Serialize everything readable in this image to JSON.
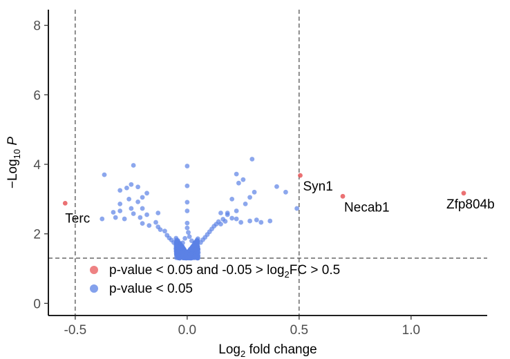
{
  "chart_data": {
    "type": "scatter",
    "xlabel": {
      "base": "Log",
      "sub": "2",
      "rest": " fold change"
    },
    "ylabel": {
      "prefix": "−Log",
      "sub": "10",
      "rest": "P"
    },
    "xlim": [
      -0.62,
      1.34
    ],
    "ylim": [
      -0.35,
      8.45
    ],
    "x_ticks": [
      -0.5,
      0.0,
      0.5,
      1.0
    ],
    "x_tick_labels": [
      "-0.5",
      "0.0",
      "0.5",
      "1.0"
    ],
    "y_ticks": [
      0,
      2,
      4,
      6,
      8
    ],
    "y_tick_labels": [
      "0",
      "2",
      "4",
      "6",
      "8"
    ],
    "vlines": [
      -0.5,
      0.5
    ],
    "hline": 1.3,
    "grid": false,
    "legend_position": "bottom-left inside",
    "legend": [
      {
        "color": "#e8585a",
        "parts": [
          {
            "t": "p-value < 0.05 and -0.05 > log"
          },
          {
            "t": "2",
            "sub": true
          },
          {
            "t": "FC > 0.5"
          }
        ]
      },
      {
        "color": "#5b82e6",
        "parts": [
          {
            "t": "p-value < 0.05"
          }
        ]
      }
    ],
    "colors": {
      "significant_fc": "#e8585a",
      "significant_p": "#5b82e6"
    },
    "series": [
      {
        "name": "p-value < 0.05 and -0.05 > log2FC > 0.5",
        "points": [
          {
            "x": -0.545,
            "y": 2.88,
            "label": "Terc"
          },
          {
            "x": 0.505,
            "y": 3.68,
            "label": "Syn1"
          },
          {
            "x": 0.695,
            "y": 3.08,
            "label": "Necab1"
          },
          {
            "x": 1.235,
            "y": 3.17,
            "label": "Zfp804b"
          }
        ]
      },
      {
        "name": "p-value < 0.05",
        "points": [
          {
            "x": -0.37,
            "y": 3.7
          },
          {
            "x": -0.24,
            "y": 3.97
          },
          {
            "x": -0.3,
            "y": 3.25
          },
          {
            "x": -0.27,
            "y": 3.32
          },
          {
            "x": -0.22,
            "y": 3.35
          },
          {
            "x": -0.25,
            "y": 3.42
          },
          {
            "x": -0.18,
            "y": 3.17
          },
          {
            "x": -0.2,
            "y": 3.05
          },
          {
            "x": -0.26,
            "y": 3.0
          },
          {
            "x": -0.22,
            "y": 2.92
          },
          {
            "x": -0.3,
            "y": 2.86
          },
          {
            "x": -0.33,
            "y": 2.62
          },
          {
            "x": -0.3,
            "y": 2.66
          },
          {
            "x": -0.25,
            "y": 2.73
          },
          {
            "x": -0.2,
            "y": 2.73
          },
          {
            "x": -0.38,
            "y": 2.43
          },
          {
            "x": -0.32,
            "y": 2.47
          },
          {
            "x": -0.28,
            "y": 2.43
          },
          {
            "x": -0.24,
            "y": 2.58
          },
          {
            "x": -0.21,
            "y": 2.47
          },
          {
            "x": -0.18,
            "y": 2.55
          },
          {
            "x": -0.2,
            "y": 2.3
          },
          {
            "x": -0.17,
            "y": 2.24
          },
          {
            "x": -0.14,
            "y": 2.33
          },
          {
            "x": -0.13,
            "y": 2.6
          },
          {
            "x": -0.13,
            "y": 2.2
          },
          {
            "x": -0.12,
            "y": 2.12
          },
          {
            "x": -0.1,
            "y": 2.08
          },
          {
            "x": -0.09,
            "y": 1.96
          },
          {
            "x": -0.08,
            "y": 1.88
          },
          {
            "x": -0.07,
            "y": 1.82
          },
          {
            "x": -0.06,
            "y": 1.75
          },
          {
            "x": -0.05,
            "y": 1.68
          },
          {
            "x": -0.04,
            "y": 1.61
          },
          {
            "x": -0.03,
            "y": 1.53
          },
          {
            "x": -0.025,
            "y": 1.46
          },
          {
            "x": -0.02,
            "y": 1.38
          },
          {
            "x": -0.015,
            "y": 1.33
          },
          {
            "x": -0.01,
            "y": 1.32
          },
          {
            "x": -0.005,
            "y": 1.35
          },
          {
            "x": 0.0,
            "y": 3.95
          },
          {
            "x": 0.0,
            "y": 3.38
          },
          {
            "x": 0.0,
            "y": 2.91
          },
          {
            "x": 0.0,
            "y": 2.66
          },
          {
            "x": 0.0,
            "y": 2.31
          },
          {
            "x": 0.0,
            "y": 2.17
          },
          {
            "x": 0.005,
            "y": 2.04
          },
          {
            "x": 0.01,
            "y": 1.92
          },
          {
            "x": -0.01,
            "y": 1.87
          },
          {
            "x": 0.02,
            "y": 1.8
          },
          {
            "x": -0.02,
            "y": 1.74
          },
          {
            "x": 0.03,
            "y": 1.66
          },
          {
            "x": -0.03,
            "y": 1.6
          },
          {
            "x": 0.04,
            "y": 1.56
          },
          {
            "x": -0.04,
            "y": 1.5
          },
          {
            "x": 0.05,
            "y": 1.46
          },
          {
            "x": 0.02,
            "y": 1.42
          },
          {
            "x": 0.03,
            "y": 1.36
          },
          {
            "x": 0.01,
            "y": 1.33
          },
          {
            "x": 0.015,
            "y": 1.4
          },
          {
            "x": 0.06,
            "y": 1.75
          },
          {
            "x": 0.07,
            "y": 1.83
          },
          {
            "x": 0.08,
            "y": 1.9
          },
          {
            "x": 0.09,
            "y": 1.98
          },
          {
            "x": 0.1,
            "y": 2.06
          },
          {
            "x": 0.11,
            "y": 2.14
          },
          {
            "x": 0.12,
            "y": 2.22
          },
          {
            "x": 0.13,
            "y": 2.28
          },
          {
            "x": 0.14,
            "y": 2.35
          },
          {
            "x": 0.15,
            "y": 2.28
          },
          {
            "x": 0.16,
            "y": 2.42
          },
          {
            "x": 0.17,
            "y": 2.36
          },
          {
            "x": 0.18,
            "y": 2.55
          },
          {
            "x": 0.2,
            "y": 2.45
          },
          {
            "x": 0.22,
            "y": 2.43
          },
          {
            "x": 0.24,
            "y": 2.33
          },
          {
            "x": 0.28,
            "y": 2.37
          },
          {
            "x": 0.31,
            "y": 2.4
          },
          {
            "x": 0.33,
            "y": 2.33
          },
          {
            "x": 0.37,
            "y": 2.37
          },
          {
            "x": 0.18,
            "y": 2.6
          },
          {
            "x": 0.15,
            "y": 2.6
          },
          {
            "x": 0.2,
            "y": 3.0
          },
          {
            "x": 0.22,
            "y": 2.66
          },
          {
            "x": 0.26,
            "y": 2.86
          },
          {
            "x": 0.28,
            "y": 3.05
          },
          {
            "x": 0.23,
            "y": 3.46
          },
          {
            "x": 0.25,
            "y": 3.56
          },
          {
            "x": 0.22,
            "y": 3.72
          },
          {
            "x": 0.29,
            "y": 4.15
          },
          {
            "x": 0.3,
            "y": 3.2
          },
          {
            "x": 0.4,
            "y": 3.36
          },
          {
            "x": 0.44,
            "y": 3.2
          },
          {
            "x": 0.49,
            "y": 2.73
          }
        ]
      }
    ]
  }
}
